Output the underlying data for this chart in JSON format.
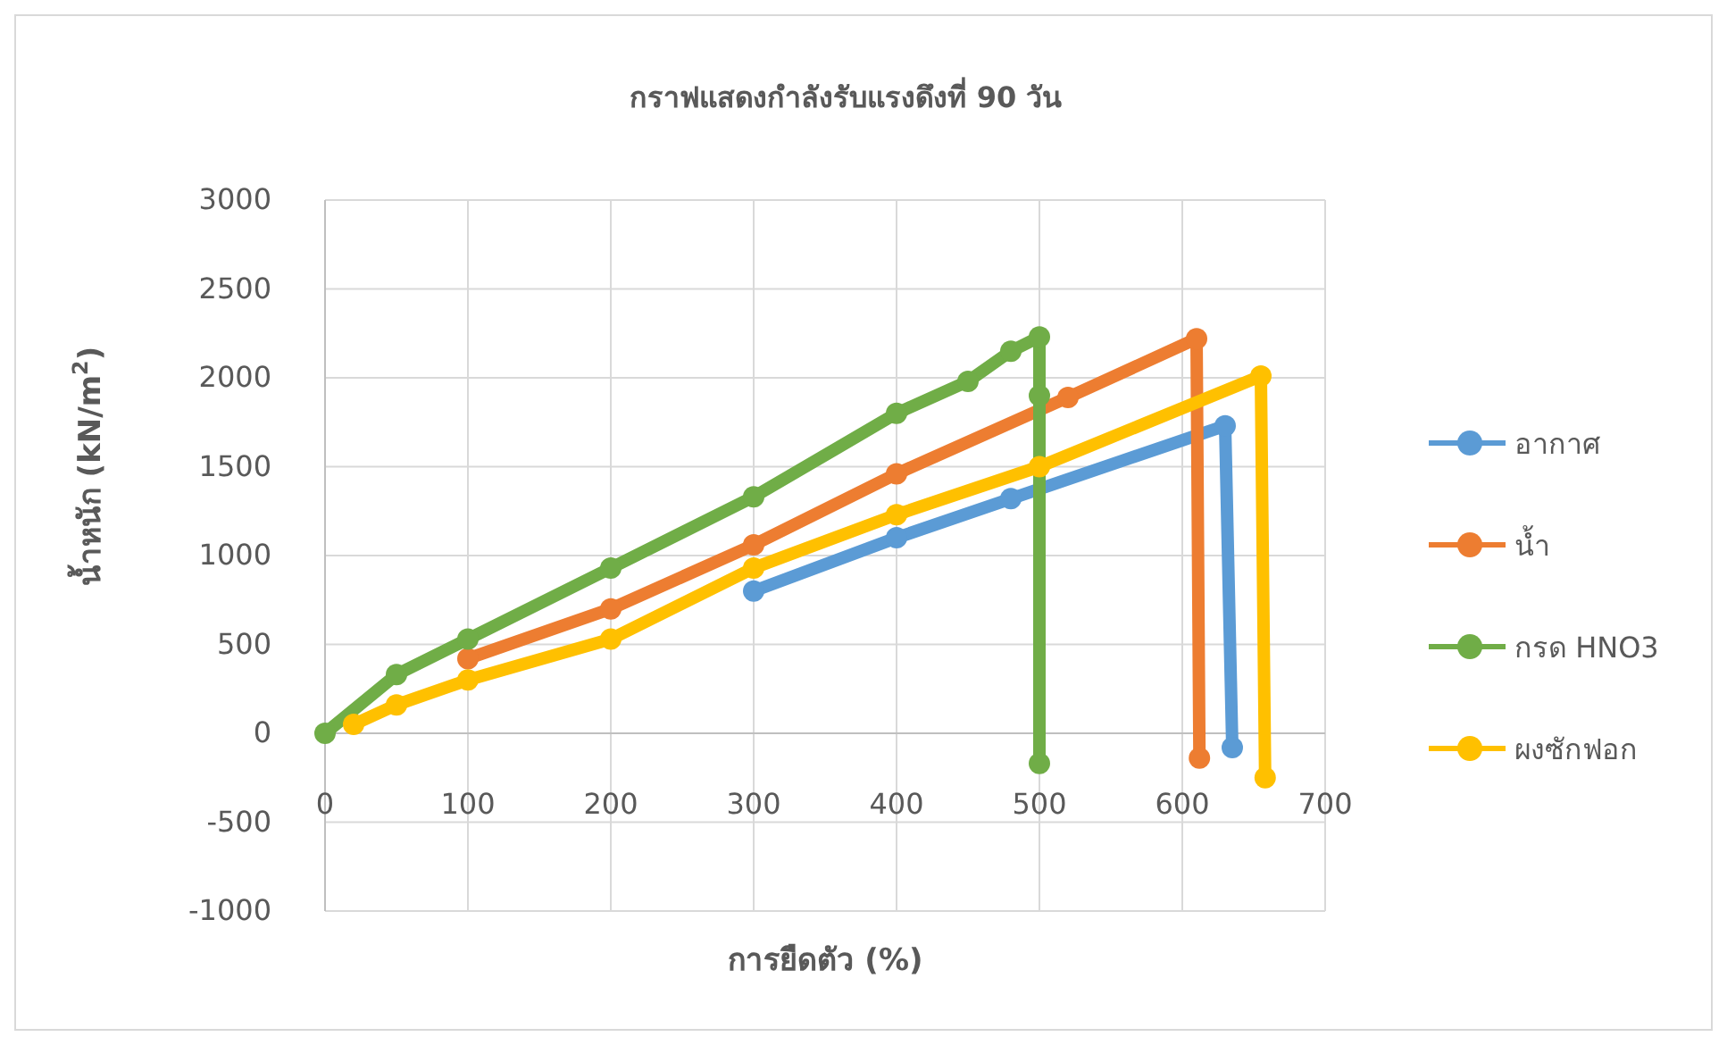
{
  "chart_data": {
    "type": "line",
    "title": "กราฟแสดงกำลังรับแรงดึงที่ 90 วัน",
    "xlabel": "การยืดตัว (%)",
    "ylabel": "น้ำหนัก (kN/m$^{2}$)",
    "xlim": [
      0,
      700
    ],
    "xticks": [
      0,
      100,
      200,
      300,
      400,
      500,
      600,
      700
    ],
    "ylim": [
      -1000,
      3000
    ],
    "yticks": [
      -1000,
      -500,
      0,
      500,
      1000,
      1500,
      2000,
      2500,
      3000
    ],
    "grid": true,
    "legend": "right",
    "marker": "circle",
    "line_style": "solid",
    "series": [
      {
        "name": "อากาศ",
        "color": "#5b9bd5",
        "x": [
          300,
          400,
          480,
          630,
          635
        ],
        "values": [
          800,
          1100,
          1320,
          1730,
          -80
        ]
      },
      {
        "name": "น้ำ",
        "color": "#ed7d31",
        "x": [
          100,
          200,
          300,
          400,
          520,
          610,
          612
        ],
        "values": [
          420,
          700,
          1060,
          1460,
          1890,
          2220,
          -140
        ]
      },
      {
        "name": "กรด HNO3",
        "color": "#70ad47",
        "x": [
          0,
          50,
          100,
          200,
          300,
          400,
          450,
          480,
          500,
          500,
          500
        ],
        "values": [
          0,
          330,
          530,
          930,
          1330,
          1800,
          1980,
          2150,
          2230,
          1900,
          -170
        ]
      },
      {
        "name": "ผงซักฟอก",
        "color": "#ffc000",
        "x": [
          20,
          50,
          100,
          200,
          300,
          400,
          500,
          655,
          658
        ],
        "values": [
          50,
          160,
          300,
          530,
          930,
          1230,
          1500,
          2010,
          -250
        ]
      }
    ]
  }
}
